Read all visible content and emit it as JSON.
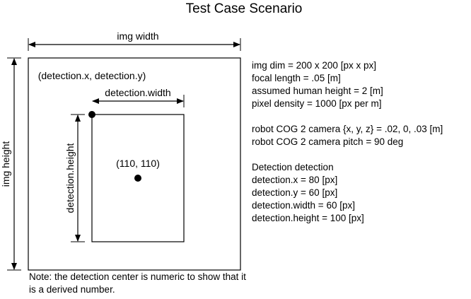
{
  "title": "Test Case Scenario",
  "labels": {
    "img_width": "img width",
    "img_height": "img height",
    "detection_point": "(detection.x, detection.y)",
    "detection_width": "detection.width",
    "detection_height": "detection.height",
    "center_point": "(110, 110)"
  },
  "info": {
    "params": [
      "img dim = 200 x 200 [px x px]",
      "focal length = .05 [m]",
      "assumed human height = 2 [m]",
      "pixel density = 1000 [px per m]"
    ],
    "robot": [
      "robot COG 2 camera {x, y, z} = .02, 0, .03 [m]",
      "robot COG 2 camera pitch = 90 deg"
    ],
    "detection": [
      "Detection detection",
      "detection.x = 80 [px]",
      "detection.y = 60 [px]",
      "detection.width = 60 [px]",
      "detection.height = 100 [px]"
    ]
  },
  "note": "Note: the detection center is numeric to show that it is a derived number."
}
